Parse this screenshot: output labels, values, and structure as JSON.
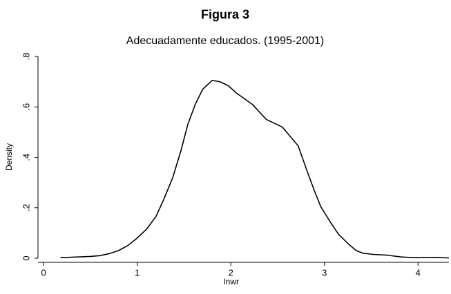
{
  "chart_data": {
    "type": "line",
    "title": "Figura 3",
    "subtitle": "Adecuadamente educados. (1995-2001)",
    "xlabel": "lnwr",
    "ylabel": "Density",
    "xlim": [
      -0.06,
      4.33
    ],
    "ylim": [
      0,
      0.8
    ],
    "xticks": [
      0,
      1,
      2,
      3,
      4
    ],
    "yticks": [
      0,
      {
        "value": 0.2,
        "label": ".2"
      },
      {
        "value": 0.4,
        "label": ".4"
      },
      {
        "value": 0.6,
        "label": ".6"
      },
      {
        "value": 0.8,
        "label": ".8"
      }
    ],
    "grid": false,
    "series": [
      {
        "color": "#000000",
        "x": [
          0.18,
          0.3,
          0.5,
          0.6,
          0.7,
          0.8,
          0.9,
          1.0,
          1.1,
          1.2,
          1.28,
          1.38,
          1.47,
          1.54,
          1.62,
          1.7,
          1.8,
          1.88,
          1.97,
          2.06,
          2.23,
          2.38,
          2.55,
          2.63,
          2.72,
          2.82,
          2.89,
          2.96,
          3.06,
          3.15,
          3.26,
          3.34,
          3.41,
          3.52,
          3.67,
          3.82,
          3.97,
          4.19,
          4.33
        ],
        "values": [
          0.002,
          0.004,
          0.007,
          0.01,
          0.018,
          0.03,
          0.05,
          0.08,
          0.115,
          0.165,
          0.23,
          0.32,
          0.43,
          0.53,
          0.61,
          0.67,
          0.705,
          0.7,
          0.685,
          0.655,
          0.61,
          0.55,
          0.52,
          0.485,
          0.445,
          0.34,
          0.27,
          0.205,
          0.145,
          0.095,
          0.055,
          0.03,
          0.02,
          0.015,
          0.012,
          0.005,
          0.002,
          0.003,
          0.001
        ]
      }
    ]
  }
}
